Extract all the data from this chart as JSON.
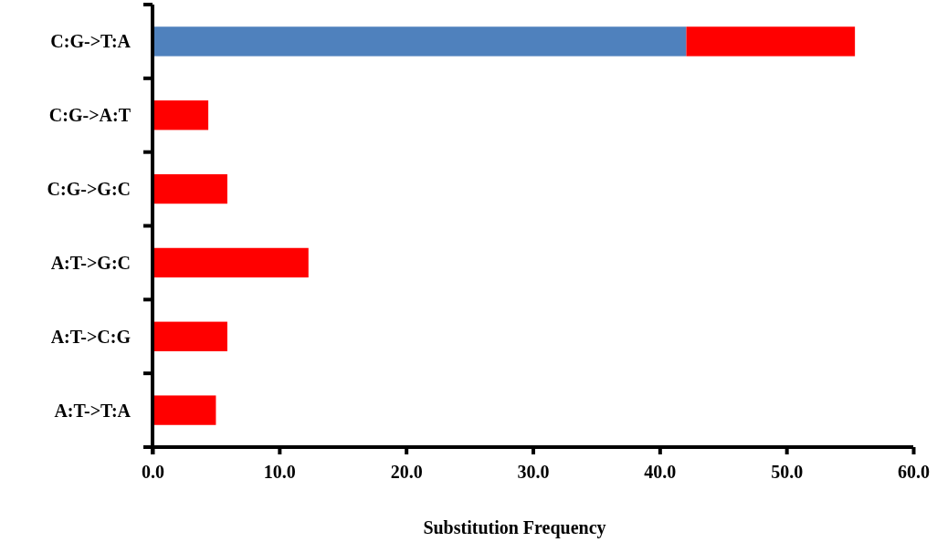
{
  "chart_data": {
    "type": "bar",
    "orientation": "horizontal",
    "stacked": true,
    "xlabel": "Substitution Frequency",
    "categories": [
      "C:G->T:A",
      "C:G->A:T",
      "C:G->G:C",
      "A:T->G:C",
      "A:T->C:G",
      "A:T->T:A"
    ],
    "series": [
      {
        "color": "#4f81bd",
        "values": [
          42.1,
          null,
          null,
          null,
          null,
          null
        ]
      },
      {
        "color": "#ff0000",
        "values": [
          13.3,
          4.4,
          5.9,
          12.3,
          5.9,
          5.0
        ]
      }
    ],
    "xlim": [
      0,
      60
    ],
    "xticks": [
      {
        "value": 0,
        "label": "0.0"
      },
      {
        "value": 10,
        "label": "10.0"
      },
      {
        "value": 20,
        "label": "20.0"
      },
      {
        "value": 30,
        "label": "30.0"
      },
      {
        "value": 40,
        "label": "40.0"
      },
      {
        "value": 50,
        "label": "50.0"
      },
      {
        "value": 60,
        "label": "60.0"
      }
    ],
    "grid": false
  }
}
